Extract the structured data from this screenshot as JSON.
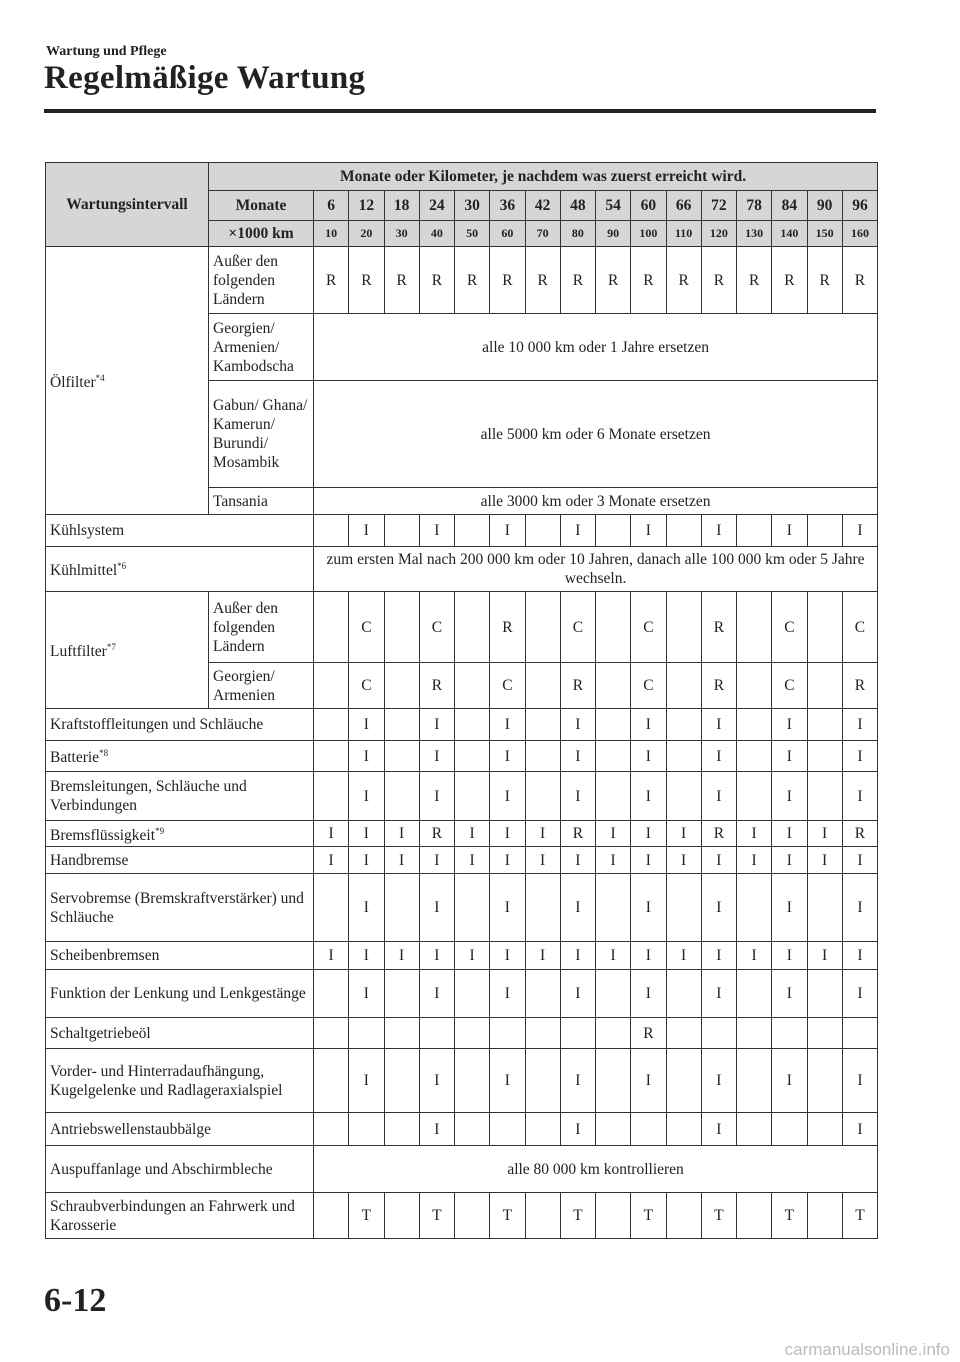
{
  "header": {
    "section": "Wartung und Pflege",
    "title": "Regelmäßige Wartung"
  },
  "table": {
    "interval_label": "Wartungsintervall",
    "span_header": "Monate oder Kilometer, je nachdem was zuerst erreicht wird.",
    "months_label": "Monate",
    "km_label": "×1000 km",
    "months": [
      "6",
      "12",
      "18",
      "24",
      "30",
      "36",
      "42",
      "48",
      "54",
      "60",
      "66",
      "72",
      "78",
      "84",
      "90",
      "96"
    ],
    "km": [
      "10",
      "20",
      "30",
      "40",
      "50",
      "60",
      "70",
      "80",
      "90",
      "100",
      "110",
      "120",
      "130",
      "140",
      "150",
      "160"
    ],
    "groups": [
      {
        "label": "Ölfilter",
        "sup": "*4",
        "rows": [
          {
            "sub": "Außer den folgenden Ländern",
            "h": 67,
            "values": [
              "R",
              "R",
              "R",
              "R",
              "R",
              "R",
              "R",
              "R",
              "R",
              "R",
              "R",
              "R",
              "R",
              "R",
              "R",
              "R"
            ]
          },
          {
            "sub": "Georgien/ Armenien/ Kambodscha",
            "h": 67,
            "text": "alle 10 000 km oder 1 Jahre ersetzen"
          },
          {
            "sub": "Gabun/ Ghana/ Kamerun/ Burundi/ Mosambik",
            "h": 107,
            "text": "alle 5000 km oder 6 Monate ersetzen"
          },
          {
            "sub": "Tansania",
            "h": 27,
            "text": "alle 3000 km oder 3 Monate ersetzen"
          }
        ]
      },
      {
        "label": "Kühlsystem",
        "h": 32,
        "values": [
          "",
          "I",
          "",
          "I",
          "",
          "I",
          "",
          "I",
          "",
          "I",
          "",
          "I",
          "",
          "I",
          "",
          "I"
        ]
      },
      {
        "label": "Kühlmittel",
        "sup": "*6",
        "h": 45,
        "text": "zum ersten Mal nach 200 000 km oder 10 Jahren, danach alle 100 000 km oder 5 Jahre wechseln."
      },
      {
        "label": "Luftfilter",
        "sup": "*7",
        "rows": [
          {
            "sub": "Außer den folgenden Ländern",
            "h": 71,
            "values": [
              "",
              "C",
              "",
              "C",
              "",
              "R",
              "",
              "C",
              "",
              "C",
              "",
              "R",
              "",
              "C",
              "",
              "C"
            ]
          },
          {
            "sub": "Georgien/ Armenien",
            "h": 46,
            "values": [
              "",
              "C",
              "",
              "R",
              "",
              "C",
              "",
              "R",
              "",
              "C",
              "",
              "R",
              "",
              "C",
              "",
              "R"
            ]
          }
        ]
      },
      {
        "label": "Kraftstoffleitungen und Schläuche",
        "h": 32,
        "values": [
          "",
          "I",
          "",
          "I",
          "",
          "I",
          "",
          "I",
          "",
          "I",
          "",
          "I",
          "",
          "I",
          "",
          "I"
        ]
      },
      {
        "label": "Batterie",
        "sup": "*8",
        "h": 31,
        "values": [
          "",
          "I",
          "",
          "I",
          "",
          "I",
          "",
          "I",
          "",
          "I",
          "",
          "I",
          "",
          "I",
          "",
          "I"
        ]
      },
      {
        "label": "Bremsleitungen, Schläuche und Verbindungen",
        "h": 49,
        "values": [
          "",
          "I",
          "",
          "I",
          "",
          "I",
          "",
          "I",
          "",
          "I",
          "",
          "I",
          "",
          "I",
          "",
          "I"
        ]
      },
      {
        "label": "Bremsflüssigkeit",
        "sup": "*9",
        "h": 26,
        "values": [
          "I",
          "I",
          "I",
          "R",
          "I",
          "I",
          "I",
          "R",
          "I",
          "I",
          "I",
          "R",
          "I",
          "I",
          "I",
          "R"
        ]
      },
      {
        "label": "Handbremse",
        "h": 27,
        "values": [
          "I",
          "I",
          "I",
          "I",
          "I",
          "I",
          "I",
          "I",
          "I",
          "I",
          "I",
          "I",
          "I",
          "I",
          "I",
          "I"
        ]
      },
      {
        "label": "Servobremse (Bremskraftverstärker) und Schläuche",
        "h": 68,
        "values": [
          "",
          "I",
          "",
          "I",
          "",
          "I",
          "",
          "I",
          "",
          "I",
          "",
          "I",
          "",
          "I",
          "",
          "I"
        ]
      },
      {
        "label": "Scheibenbremsen",
        "h": 28,
        "values": [
          "I",
          "I",
          "I",
          "I",
          "I",
          "I",
          "I",
          "I",
          "I",
          "I",
          "I",
          "I",
          "I",
          "I",
          "I",
          "I"
        ]
      },
      {
        "label": "Funktion der Lenkung und Lenkgestänge",
        "h": 48,
        "values": [
          "",
          "I",
          "",
          "I",
          "",
          "I",
          "",
          "I",
          "",
          "I",
          "",
          "I",
          "",
          "I",
          "",
          "I"
        ]
      },
      {
        "label": "Schaltgetriebeöl",
        "h": 31,
        "values": [
          "",
          "",
          "",
          "",
          "",
          "",
          "",
          "",
          "",
          "R",
          "",
          "",
          "",
          "",
          "",
          ""
        ]
      },
      {
        "label": "Vorder- und Hinterradaufhängung, Kugelgelenke und Radlageraxialspiel",
        "h": 64,
        "values": [
          "",
          "I",
          "",
          "I",
          "",
          "I",
          "",
          "I",
          "",
          "I",
          "",
          "I",
          "",
          "I",
          "",
          "I"
        ]
      },
      {
        "label": "Antriebswellenstaubbälge",
        "h": 33,
        "values": [
          "",
          "",
          "",
          "I",
          "",
          "",
          "",
          "I",
          "",
          "",
          "",
          "I",
          "",
          "",
          "",
          "I"
        ]
      },
      {
        "label": "Auspuffanlage und Abschirmbleche",
        "h": 47,
        "text": "alle 80 000 km kontrollieren"
      },
      {
        "label": "Schraubverbindungen an Fahrwerk und Karosserie",
        "h": 46,
        "values": [
          "",
          "T",
          "",
          "T",
          "",
          "T",
          "",
          "T",
          "",
          "T",
          "",
          "T",
          "",
          "T",
          "",
          "T"
        ]
      }
    ]
  },
  "footer": {
    "page_number": "6-12",
    "watermark": "carmanualsonline.info"
  }
}
